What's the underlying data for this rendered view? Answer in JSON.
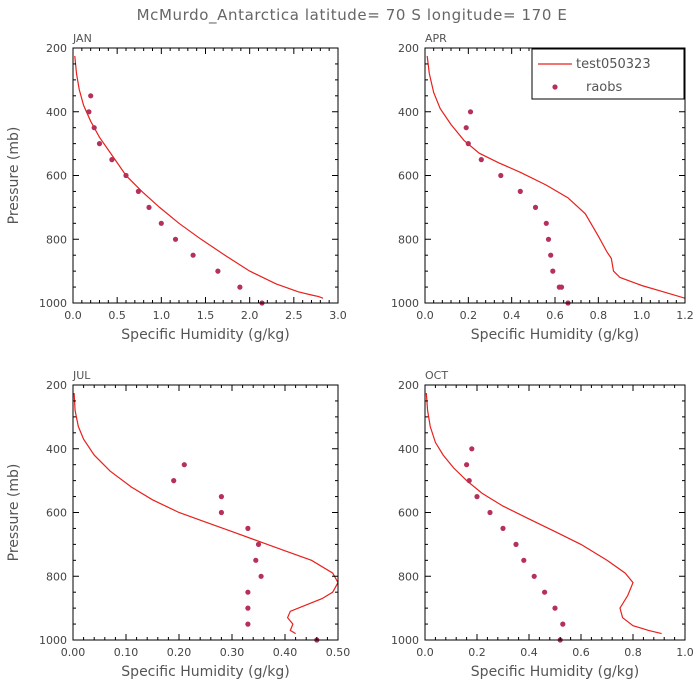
{
  "figure_title": "McMurdo_Antarctica  latitude= 70 S longitude= 170 E",
  "legend": {
    "model_label": "test050323",
    "obs_label": "raobs"
  },
  "colors": {
    "model": "#e8201c",
    "obs": "#b5305a"
  },
  "chart_data": [
    {
      "type": "line",
      "title": "JAN",
      "xlabel": "Specific Humidity (g/kg)",
      "ylabel": "Pressure (mb)",
      "xlim": [
        0,
        3.0
      ],
      "ylim": [
        200,
        1000
      ],
      "xticks": [
        "0.0",
        "0.5",
        "1.0",
        "1.5",
        "2.0",
        "2.5",
        "3.0"
      ],
      "yticks": [
        "200",
        "400",
        "600",
        "800",
        "1000"
      ],
      "series": [
        {
          "name": "test050323",
          "x": [
            0.02,
            0.04,
            0.07,
            0.12,
            0.2,
            0.3,
            0.45,
            0.6,
            0.78,
            0.98,
            1.2,
            1.45,
            1.72,
            2.0,
            2.3,
            2.55,
            2.7,
            2.78,
            2.83
          ],
          "y": [
            225,
            280,
            330,
            380,
            430,
            480,
            540,
            600,
            650,
            700,
            750,
            800,
            850,
            900,
            940,
            965,
            975,
            980,
            985
          ]
        },
        {
          "name": "raobs",
          "x": [
            0.2,
            0.18,
            0.24,
            0.3,
            0.44,
            0.6,
            0.74,
            0.86,
            1.0,
            1.16,
            1.36,
            1.64,
            1.89,
            2.14
          ],
          "y": [
            350,
            400,
            450,
            500,
            550,
            600,
            650,
            700,
            750,
            800,
            850,
            900,
            950,
            1000
          ]
        }
      ]
    },
    {
      "type": "line",
      "title": "APR",
      "xlabel": "Specific Humidity (g/kg)",
      "ylabel": "",
      "xlim": [
        0,
        1.2
      ],
      "ylim": [
        200,
        1000
      ],
      "xticks": [
        "0.0",
        "0.2",
        "0.4",
        "0.6",
        "0.8",
        "1.0",
        "1.2"
      ],
      "yticks": [
        "200",
        "400",
        "600",
        "800",
        "1000"
      ],
      "series": [
        {
          "name": "test050323",
          "x": [
            0.01,
            0.02,
            0.04,
            0.07,
            0.12,
            0.18,
            0.25,
            0.34,
            0.44,
            0.56,
            0.66,
            0.74,
            0.8,
            0.84,
            0.86,
            0.87,
            0.9,
            1.0,
            1.1,
            1.2
          ],
          "y": [
            225,
            280,
            340,
            390,
            440,
            490,
            530,
            560,
            590,
            630,
            670,
            720,
            790,
            840,
            860,
            900,
            920,
            945,
            965,
            985
          ]
        },
        {
          "name": "raobs",
          "x": [
            0.21,
            0.19,
            0.2,
            0.26,
            0.35,
            0.44,
            0.51,
            0.56,
            0.57,
            0.58,
            0.59,
            0.62,
            0.63,
            0.66
          ],
          "y": [
            400,
            450,
            500,
            550,
            600,
            650,
            700,
            750,
            800,
            850,
            900,
            950,
            950,
            1000
          ]
        }
      ]
    },
    {
      "type": "line",
      "title": "JUL",
      "xlabel": "Specific Humidity (g/kg)",
      "ylabel": "Pressure (mb)",
      "xlim": [
        0,
        0.5
      ],
      "ylim": [
        200,
        1000
      ],
      "xticks": [
        "0.00",
        "0.10",
        "0.20",
        "0.30",
        "0.40",
        "0.50"
      ],
      "yticks": [
        "200",
        "400",
        "600",
        "800",
        "1000"
      ],
      "series": [
        {
          "name": "test050323",
          "x": [
            0.002,
            0.004,
            0.01,
            0.02,
            0.04,
            0.07,
            0.11,
            0.15,
            0.2,
            0.25,
            0.3,
            0.35,
            0.4,
            0.45,
            0.49,
            0.5,
            0.49,
            0.47,
            0.44,
            0.41,
            0.405,
            0.415,
            0.41,
            0.42
          ],
          "y": [
            225,
            280,
            330,
            370,
            420,
            470,
            520,
            560,
            600,
            630,
            660,
            690,
            720,
            750,
            790,
            820,
            850,
            870,
            890,
            910,
            930,
            950,
            970,
            980
          ]
        },
        {
          "name": "raobs",
          "x": [
            0.21,
            0.19,
            0.28,
            0.28,
            0.33,
            0.35,
            0.345,
            0.355,
            0.33,
            0.33,
            0.33,
            0.46
          ],
          "y": [
            450,
            500,
            550,
            600,
            650,
            700,
            750,
            800,
            850,
            900,
            950,
            1000
          ]
        }
      ]
    },
    {
      "type": "line",
      "title": "OCT",
      "xlabel": "Specific Humidity (g/kg)",
      "ylabel": "",
      "xlim": [
        0,
        1.0
      ],
      "ylim": [
        200,
        1000
      ],
      "xticks": [
        "0.0",
        "0.2",
        "0.4",
        "0.6",
        "0.8",
        "1.0"
      ],
      "yticks": [
        "200",
        "400",
        "600",
        "800",
        "1000"
      ],
      "series": [
        {
          "name": "test050323",
          "x": [
            0.005,
            0.01,
            0.02,
            0.04,
            0.07,
            0.11,
            0.16,
            0.22,
            0.3,
            0.4,
            0.5,
            0.6,
            0.7,
            0.77,
            0.8,
            0.78,
            0.75,
            0.76,
            0.8,
            0.86,
            0.91
          ],
          "y": [
            225,
            280,
            330,
            380,
            420,
            460,
            500,
            540,
            580,
            620,
            660,
            700,
            750,
            790,
            820,
            860,
            900,
            930,
            955,
            970,
            980
          ]
        },
        {
          "name": "raobs",
          "x": [
            0.18,
            0.16,
            0.17,
            0.2,
            0.25,
            0.3,
            0.35,
            0.38,
            0.42,
            0.46,
            0.5,
            0.53,
            0.52
          ],
          "y": [
            400,
            450,
            500,
            550,
            600,
            650,
            700,
            750,
            800,
            850,
            900,
            950,
            1000
          ]
        }
      ]
    }
  ]
}
